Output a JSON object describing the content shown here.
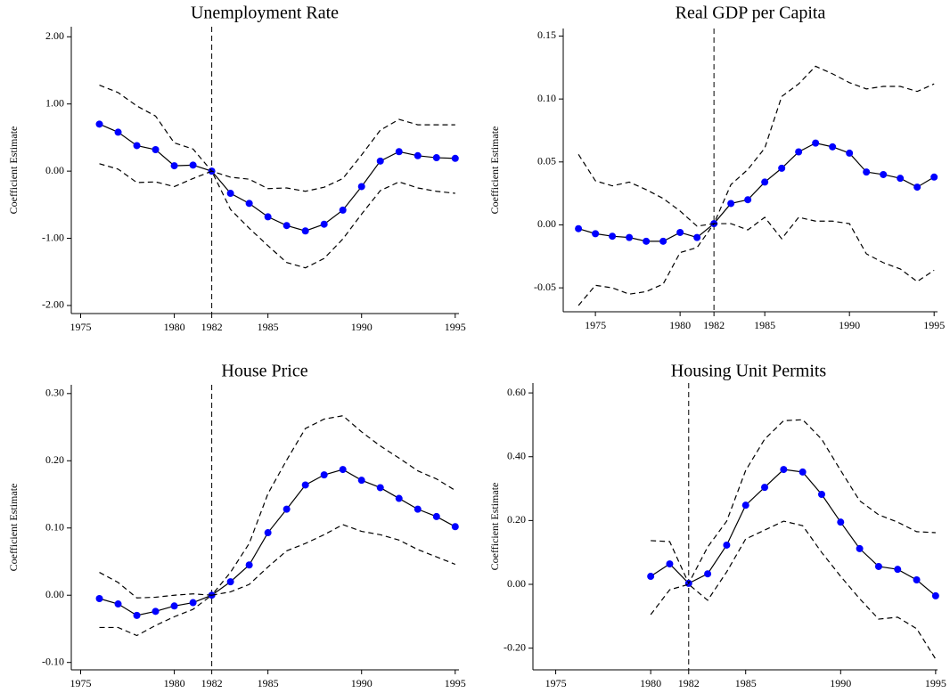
{
  "chart_data": [
    {
      "type": "line",
      "title": "Unemployment Rate",
      "ylabel": "Coefficient Estimate",
      "x": [
        1976,
        1977,
        1978,
        1979,
        1980,
        1981,
        1982,
        1983,
        1984,
        1985,
        1986,
        1987,
        1988,
        1989,
        1990,
        1991,
        1992,
        1993,
        1994,
        1995
      ],
      "series": [
        {
          "color": "#000000",
          "marker_color": "#0000ff",
          "dashed": false,
          "values": [
            0.7,
            0.58,
            0.38,
            0.32,
            0.08,
            0.09,
            0.0,
            -0.33,
            -0.48,
            -0.68,
            -0.81,
            -0.89,
            -0.79,
            -0.58,
            -0.23,
            0.15,
            0.29,
            0.23,
            0.2,
            0.19
          ]
        },
        {
          "color": "#000000",
          "dashed": true,
          "values": [
            1.28,
            1.17,
            0.97,
            0.82,
            0.42,
            0.33,
            0.0,
            -0.09,
            -0.12,
            -0.26,
            -0.25,
            -0.3,
            -0.24,
            -0.11,
            0.24,
            0.61,
            0.77,
            0.69,
            0.69,
            0.69
          ]
        },
        {
          "color": "#000000",
          "dashed": true,
          "values": [
            0.11,
            0.03,
            -0.17,
            -0.16,
            -0.23,
            -0.11,
            0.0,
            -0.57,
            -0.85,
            -1.11,
            -1.36,
            -1.44,
            -1.3,
            -1.01,
            -0.64,
            -0.29,
            -0.16,
            -0.25,
            -0.3,
            -0.33
          ]
        }
      ],
      "vline": 1982,
      "xlim": [
        1974.5,
        1995.2
      ],
      "xticks": [
        1975,
        1980,
        1982,
        1985,
        1990,
        1995
      ],
      "ylim": [
        -2.12,
        2.15
      ],
      "yticks": [
        {
          "value": 2,
          "label": "2.00"
        },
        {
          "value": 1,
          "label": "1.00"
        },
        {
          "value": 0,
          "label": "0.00"
        },
        {
          "value": -1,
          "label": "-1.00"
        },
        {
          "value": -2,
          "label": "-2.00"
        }
      ]
    },
    {
      "type": "line",
      "title": "Real GDP per Capita",
      "ylabel": "Coefficient Estimate",
      "x": [
        1974,
        1975,
        1976,
        1977,
        1978,
        1979,
        1980,
        1981,
        1982,
        1983,
        1984,
        1985,
        1986,
        1987,
        1988,
        1989,
        1990,
        1991,
        1992,
        1993,
        1994,
        1995
      ],
      "series": [
        {
          "color": "#000000",
          "marker_color": "#0000ff",
          "dashed": false,
          "values": [
            -0.003,
            -0.007,
            -0.009,
            -0.01,
            -0.013,
            -0.013,
            -0.006,
            -0.01,
            0.001,
            0.017,
            0.02,
            0.034,
            0.045,
            0.058,
            0.065,
            0.062,
            0.057,
            0.042,
            0.04,
            0.037,
            0.03,
            0.038
          ]
        },
        {
          "color": "#000000",
          "dashed": true,
          "values": [
            0.056,
            0.035,
            0.031,
            0.034,
            0.028,
            0.021,
            0.011,
            -0.001,
            0.001,
            0.032,
            0.044,
            0.061,
            0.102,
            0.112,
            0.126,
            0.12,
            0.113,
            0.108,
            0.11,
            0.11,
            0.106,
            0.112
          ]
        },
        {
          "color": "#000000",
          "dashed": true,
          "values": [
            -0.064,
            -0.048,
            -0.05,
            -0.055,
            -0.053,
            -0.047,
            -0.022,
            -0.018,
            0.001,
            0.001,
            -0.004,
            0.006,
            -0.011,
            0.006,
            0.003,
            0.003,
            0.001,
            -0.023,
            -0.03,
            -0.035,
            -0.045,
            -0.036
          ]
        }
      ],
      "vline": 1982,
      "xlim": [
        1973.1,
        1995.2
      ],
      "xticks": [
        1975,
        1980,
        1982,
        1985,
        1990,
        1995
      ],
      "ylim": [
        -0.069,
        0.156
      ],
      "yticks": [
        0.15,
        {
          "value": 0.1,
          "label": "0.10"
        },
        0.05,
        {
          "value": 0,
          "label": "0.00"
        },
        -0.05
      ]
    },
    {
      "type": "line",
      "title": "House Price",
      "ylabel": "Coefficient Estimate",
      "x": [
        1976,
        1977,
        1978,
        1979,
        1980,
        1981,
        1982,
        1983,
        1984,
        1985,
        1986,
        1987,
        1988,
        1989,
        1990,
        1991,
        1992,
        1993,
        1994,
        1995
      ],
      "series": [
        {
          "color": "#000000",
          "marker_color": "#0000ff",
          "dashed": false,
          "values": [
            -0.005,
            -0.013,
            -0.03,
            -0.024,
            -0.016,
            -0.011,
            0.0,
            0.02,
            0.045,
            0.093,
            0.128,
            0.164,
            0.179,
            0.187,
            0.171,
            0.16,
            0.144,
            0.128,
            0.117,
            0.102
          ]
        },
        {
          "color": "#000000",
          "dashed": true,
          "values": [
            0.034,
            0.019,
            -0.004,
            -0.003,
            0.0,
            0.002,
            0.0,
            0.034,
            0.077,
            0.151,
            0.201,
            0.248,
            0.262,
            0.267,
            0.243,
            0.222,
            0.204,
            0.185,
            0.173,
            0.156
          ]
        },
        {
          "color": "#000000",
          "dashed": true,
          "values": [
            -0.048,
            -0.048,
            -0.06,
            -0.045,
            -0.032,
            -0.021,
            0.0,
            0.005,
            0.016,
            0.042,
            0.066,
            0.077,
            0.09,
            0.105,
            0.095,
            0.09,
            0.082,
            0.068,
            0.057,
            0.046
          ]
        }
      ],
      "vline": 1982,
      "xlim": [
        1974.5,
        1995.2
      ],
      "xticks": [
        1975,
        1980,
        1982,
        1985,
        1990,
        1995
      ],
      "ylim": [
        -0.111,
        0.313
      ],
      "yticks": [
        {
          "value": 0.3,
          "label": "0.30"
        },
        {
          "value": 0.2,
          "label": "0.20"
        },
        {
          "value": 0.1,
          "label": "0.10"
        },
        {
          "value": 0,
          "label": "0.00"
        },
        {
          "value": -0.1,
          "label": "-0.10"
        }
      ]
    },
    {
      "type": "line",
      "title": "Housing Unit Permits",
      "ylabel": "Coefficient Estimate",
      "x": [
        1980,
        1981,
        1982,
        1983,
        1984,
        1985,
        1986,
        1987,
        1988,
        1989,
        1990,
        1991,
        1992,
        1993,
        1994,
        1995
      ],
      "series": [
        {
          "color": "#000000",
          "marker_color": "#0000ff",
          "dashed": false,
          "values": [
            0.025,
            0.064,
            0.003,
            0.033,
            0.123,
            0.248,
            0.304,
            0.36,
            0.352,
            0.282,
            0.195,
            0.112,
            0.056,
            0.047,
            0.014,
            -0.036
          ]
        },
        {
          "color": "#000000",
          "dashed": true,
          "values": [
            0.137,
            0.134,
            0.003,
            0.117,
            0.198,
            0.357,
            0.455,
            0.513,
            0.516,
            0.455,
            0.357,
            0.262,
            0.218,
            0.195,
            0.165,
            0.162
          ]
        },
        {
          "color": "#000000",
          "dashed": true,
          "values": [
            -0.095,
            -0.017,
            0.0,
            -0.05,
            0.039,
            0.142,
            0.17,
            0.198,
            0.184,
            0.1,
            0.025,
            -0.045,
            -0.109,
            -0.103,
            -0.139,
            -0.234
          ]
        }
      ],
      "vline": 1982,
      "xlim": [
        1973.8,
        1995.1
      ],
      "xticks": [
        1975,
        1980,
        1982,
        1985,
        1990,
        1995
      ],
      "ylim": [
        -0.268,
        0.631
      ],
      "yticks": [
        {
          "value": 0.6,
          "label": "0.60"
        },
        {
          "value": 0.4,
          "label": "0.40"
        },
        {
          "value": 0.2,
          "label": "0.20"
        },
        {
          "value": 0,
          "label": "0.00"
        },
        {
          "value": -0.2,
          "label": "-0.20"
        }
      ]
    }
  ]
}
